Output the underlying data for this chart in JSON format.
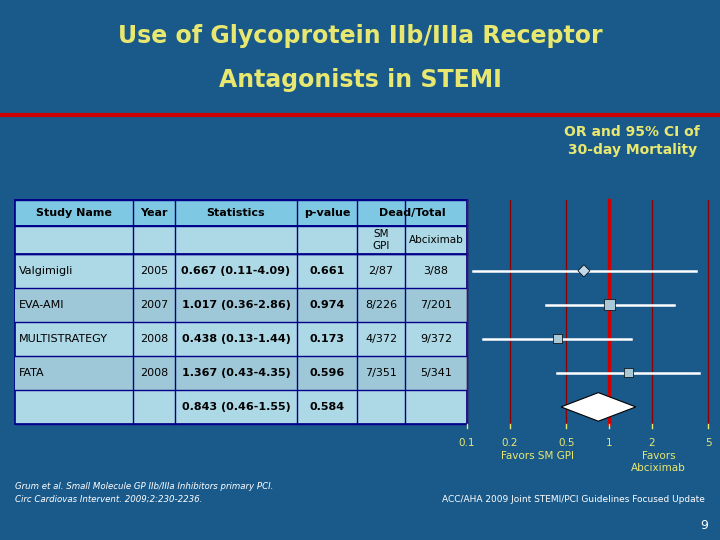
{
  "title_line1": "Use of Glycoprotein IIb/IIIa Receptor",
  "title_line2": "Antagonists in STEMI",
  "title_bg": "#1a3a6b",
  "title_color": "#e8e870",
  "subtitle": "OR and 95% CI of\n30-day Mortality",
  "subtitle_color": "#e8e870",
  "main_bg": "#1a5a8a",
  "table_header_bg": "#7ec8e3",
  "table_row_bg": "#add8e6",
  "table_row_alt_bg": "#9ec8d8",
  "table_border": "#00008b",
  "red_line_color": "#cc0000",
  "grid_line_color": "#8b0000",
  "ci_line_color": "#ffffff",
  "marker_color": "#a8c8d8",
  "diamond_color": "#ffffff",
  "small_diamond_color": "#c0d8e8",
  "studies": [
    "Valgimigli",
    "EVA-AMI",
    "MULTISTRATEGY",
    "FATA",
    ""
  ],
  "years": [
    "2005",
    "2007",
    "2008",
    "2008",
    ""
  ],
  "statistics": [
    "0.667 (0.11-4.09)",
    "1.017 (0.36-2.86)",
    "0.438 (0.13-1.44)",
    "1.367 (0.43-4.35)",
    "0.843 (0.46-1.55)"
  ],
  "pvalues": [
    "0.661",
    "0.974",
    "0.173",
    "0.596",
    "0.584"
  ],
  "sm_gpi": [
    "2/87",
    "8/226",
    "4/372",
    "7/351",
    ""
  ],
  "abciximab": [
    "3/88",
    "7/201",
    "9/372",
    "5/341",
    ""
  ],
  "or_values": [
    0.667,
    1.017,
    0.438,
    1.367,
    0.843
  ],
  "ci_low": [
    0.11,
    0.36,
    0.13,
    0.43,
    0.46
  ],
  "ci_high": [
    4.09,
    2.86,
    1.44,
    4.35,
    1.55
  ],
  "x_tick_vals": [
    0.1,
    0.2,
    0.5,
    1,
    2,
    5
  ],
  "x_tick_labels": [
    "0.1",
    "0.2",
    "0.5",
    "1",
    "2",
    "5"
  ],
  "axis_label_left": "Favors SM GPI",
  "axis_label_right": "Favors\nAbciximab",
  "footnote1": "Grum et al. Small Molecule GP IIb/IIIa Inhibitors primary PCI.",
  "footnote1b": "Circ Cardiovas Intervent. 2009;2:230-2236.",
  "footnote2": "ACC/AHA 2009 Joint STEMI/PCI Guidelines Focused Update",
  "page_num": "9"
}
